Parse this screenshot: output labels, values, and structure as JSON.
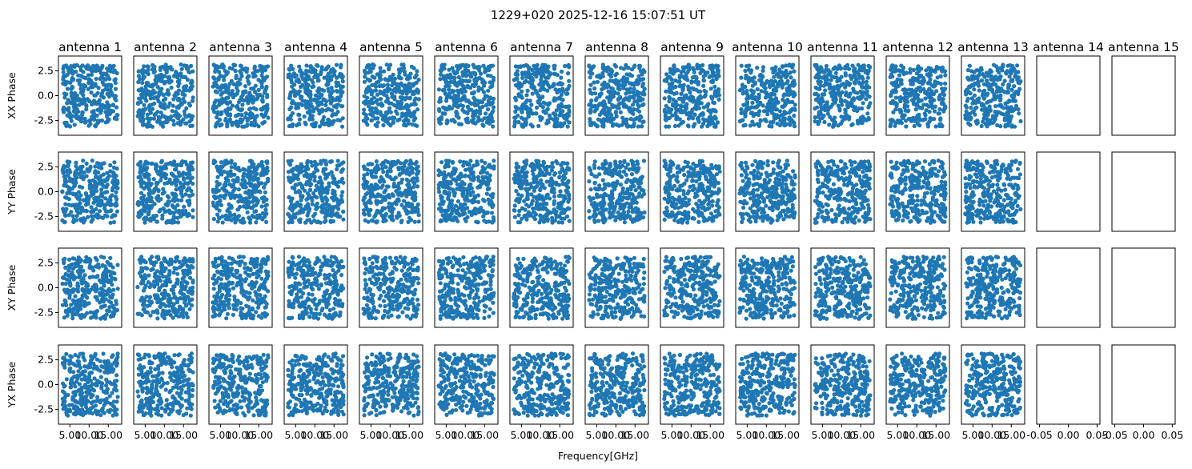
{
  "chart_data": {
    "type": "scatter",
    "suptitle": "1229+020 2025-12-16 15:07:51 UT",
    "xlabel": "Frequency[GHz]",
    "columns": [
      "antenna 1",
      "antenna 2",
      "antenna 3",
      "antenna 4",
      "antenna 5",
      "antenna 6",
      "antenna 7",
      "antenna 8",
      "antenna 9",
      "antenna 10",
      "antenna 11",
      "antenna 12",
      "antenna 13",
      "antenna 14",
      "antenna 15"
    ],
    "rows": [
      "XX Phase",
      "YY Phase",
      "XY Phase",
      "YX Phase"
    ],
    "point_color": "#1f77b4",
    "xlim_data": [
      2,
      18.5
    ],
    "ylim": [
      -4,
      4
    ],
    "xticks": [
      5,
      10,
      15
    ],
    "xtick_labels": [
      "5.00",
      "10.00",
      "15.00"
    ],
    "xlim_empty": [
      -0.055,
      0.055
    ],
    "xticks_empty": [
      -0.05,
      0.0,
      0.05
    ],
    "xtick_labels_empty": [
      "-0.05",
      "0.00",
      "0.05"
    ],
    "yticks": [
      2.5,
      0.0,
      -2.5
    ],
    "ytick_labels": [
      "2.5",
      "0.0",
      "-2.5"
    ],
    "freq_range_ghz": [
      3.0,
      17.5
    ],
    "phase_range_rad": [
      -3.14,
      3.14
    ],
    "points_per_panel": 300,
    "antennas_with_data": 13,
    "grid": false
  }
}
